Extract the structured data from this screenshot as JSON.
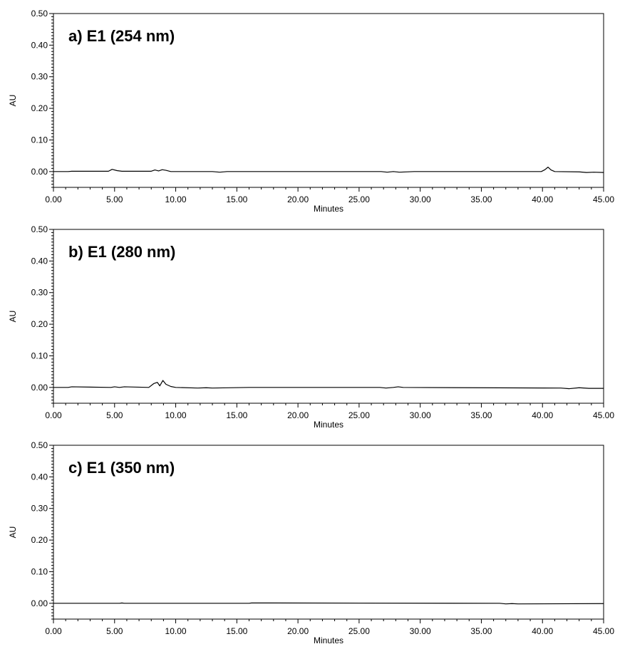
{
  "chart_data": [
    {
      "type": "line",
      "title": "a) E1 (254 nm)",
      "xlabel": "Minutes",
      "ylabel": "AU",
      "xlim": [
        0,
        45
      ],
      "ylim": [
        -0.05,
        0.5
      ],
      "x_ticks": [
        "0.00",
        "5.00",
        "10.00",
        "15.00",
        "20.00",
        "25.00",
        "30.00",
        "35.00",
        "40.00",
        "45.00"
      ],
      "y_ticks": [
        "0.00",
        "0.10",
        "0.20",
        "0.30",
        "0.40",
        "0.50"
      ],
      "grid": false,
      "series": [
        {
          "x": [
            0,
            1.2,
            1.5,
            4.5,
            4.8,
            5.2,
            5.6,
            8.0,
            8.3,
            8.6,
            8.9,
            9.2,
            9.6,
            13.0,
            13.6,
            14.2,
            26.8,
            27.3,
            27.8,
            28.3,
            29.5,
            30.0,
            39.9,
            40.2,
            40.45,
            40.7,
            41.0,
            43.0,
            43.6,
            44.2,
            45.0
          ],
          "y": [
            0.0,
            0.0,
            0.001,
            0.001,
            0.007,
            0.003,
            0.001,
            0.001,
            0.005,
            0.002,
            0.006,
            0.004,
            0.0,
            0.0,
            -0.002,
            0.0,
            0.0,
            -0.002,
            0.0,
            -0.002,
            0.0,
            0.0,
            0.0,
            0.006,
            0.014,
            0.005,
            0.0,
            -0.001,
            -0.003,
            -0.002,
            -0.003
          ]
        }
      ]
    },
    {
      "type": "line",
      "title": "b) E1 (280 nm)",
      "xlabel": "Minutes",
      "ylabel": "AU",
      "xlim": [
        0,
        45
      ],
      "ylim": [
        -0.05,
        0.5
      ],
      "x_ticks": [
        "0.00",
        "5.00",
        "10.00",
        "15.00",
        "20.00",
        "25.00",
        "30.00",
        "35.00",
        "40.00",
        "45.00"
      ],
      "y_ticks": [
        "0.00",
        "0.10",
        "0.20",
        "0.30",
        "0.40",
        "0.50"
      ],
      "grid": false,
      "series": [
        {
          "x": [
            0,
            1.2,
            1.5,
            4.7,
            5.0,
            5.4,
            5.8,
            7.8,
            8.2,
            8.5,
            8.7,
            8.95,
            9.2,
            9.6,
            10.0,
            11.8,
            12.5,
            13.0,
            16.0,
            26.7,
            27.2,
            27.8,
            28.2,
            28.6,
            41.5,
            42.2,
            43.0,
            43.8,
            45.0
          ],
          "y": [
            0.0,
            0.0,
            0.002,
            0.0,
            0.002,
            0.0,
            0.002,
            0.0,
            0.012,
            0.016,
            0.005,
            0.022,
            0.01,
            0.003,
            0.0,
            -0.002,
            -0.001,
            -0.002,
            0.0,
            0.0,
            -0.002,
            0.0,
            0.002,
            0.0,
            -0.002,
            -0.004,
            -0.001,
            -0.003,
            -0.003
          ]
        }
      ]
    },
    {
      "type": "line",
      "title": "c) E1 (350 nm)",
      "xlabel": "Minutes",
      "ylabel": "AU",
      "xlim": [
        0,
        45
      ],
      "ylim": [
        -0.05,
        0.5
      ],
      "x_ticks": [
        "0.00",
        "5.00",
        "10.00",
        "15.00",
        "20.00",
        "25.00",
        "30.00",
        "35.00",
        "40.00",
        "45.00"
      ],
      "y_ticks": [
        "0.00",
        "0.10",
        "0.20",
        "0.30",
        "0.40",
        "0.50"
      ],
      "grid": false,
      "series": [
        {
          "x": [
            0,
            5.4,
            5.6,
            5.8,
            16.0,
            16.2,
            36.5,
            37.0,
            37.5,
            38.0,
            45.0
          ],
          "y": [
            0.0,
            0.0,
            0.001,
            0.0,
            0.0,
            0.001,
            0.0,
            -0.002,
            -0.001,
            -0.002,
            -0.001
          ]
        }
      ]
    }
  ]
}
